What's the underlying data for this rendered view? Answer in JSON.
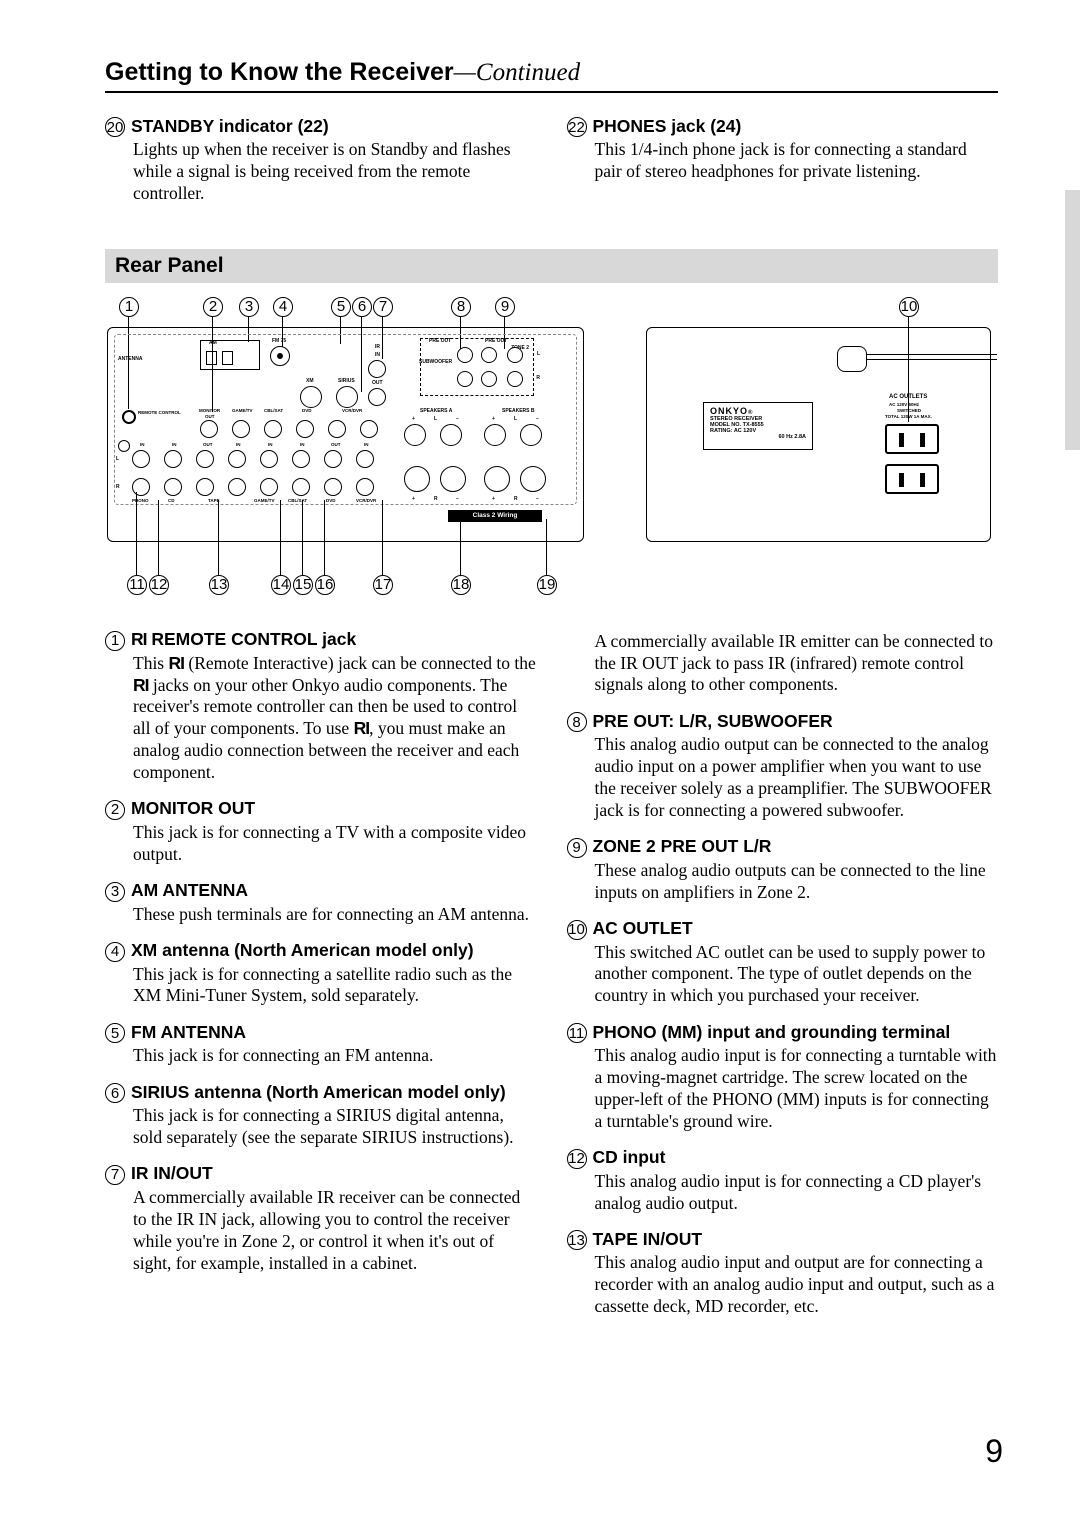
{
  "title_main": "Getting to Know the Receiver",
  "title_cont": "—Continued",
  "top_items": {
    "left": {
      "num": "20",
      "title": "STANDBY indicator (22)",
      "body": "Lights up when the receiver is on Standby and flashes while a signal is being received from the remote controller."
    },
    "right": {
      "num": "22",
      "title": "PHONES jack (24)",
      "body": "This 1/4-inch phone jack is for connecting a standard pair of stereo headphones for private listening."
    }
  },
  "rear_panel_header": "Rear Panel",
  "callouts_top": [
    "1",
    "2",
    "3",
    "4",
    "5",
    "6",
    "7",
    "8",
    "9",
    "10"
  ],
  "callouts_bottom": [
    "11",
    "12",
    "13",
    "14",
    "15",
    "16",
    "17",
    "18",
    "19"
  ],
  "panel_labels": {
    "brand": "ONKYO",
    "model1": "STEREO RECEIVER",
    "model2": "MODEL NO. TX-8555",
    "model3": "RATING:  AC 120V",
    "model4": "60 Hz   2.8A",
    "ac_outlets": "AC OUTLETS",
    "ac_line1": "AC 120V     60Hz",
    "ac_line2": "SWITCHED",
    "ac_line3": "TOTAL 120W  1A  MAX.",
    "antenna": "ANTENNA",
    "am": "AM",
    "fm75": "FM 75",
    "xm": "XM",
    "sirius": "SIRIUS",
    "ir": "IR",
    "in": "IN",
    "out": "OUT",
    "preout": "PRE OUT",
    "preout2": "PRE OUT",
    "zone2": "ZONE 2",
    "subwoofer": "SUBWOOFER",
    "speakers_a": "SPEAKERS A",
    "speakers_b": "SPEAKERS B",
    "remote_control": "REMOTE CONTROL",
    "monitor": "MONITOR",
    "game": "GAME/TV",
    "cbl": "CBL/SAT",
    "dvd": "DVD",
    "vcr": "VCR/DVR",
    "phono": "PHONO",
    "cd": "CD",
    "tape": "TAPE",
    "class2": "Class 2 Wiring",
    "l": "L",
    "r": "R",
    "plus": "+",
    "minus": "−"
  },
  "items_left": [
    {
      "num": "1",
      "title": " REMOTE CONTROL jack",
      "ri": true,
      "body": "This  (Remote Interactive) jack can be connected to the  jacks on your other Onkyo audio components. The receiver's remote controller can then be used to control all of your components. To use , you must make an analog audio connection between the receiver and each component.",
      "ri_body": true
    },
    {
      "num": "2",
      "title": "MONITOR OUT",
      "body": "This jack is for connecting a TV with a composite video output."
    },
    {
      "num": "3",
      "title": "AM ANTENNA",
      "body": "These push terminals are for connecting an AM antenna."
    },
    {
      "num": "4",
      "title": "XM antenna (North American model only)",
      "body": "This jack is for connecting a satellite radio such as the XM Mini-Tuner System, sold separately."
    },
    {
      "num": "5",
      "title": "FM ANTENNA",
      "body": "This jack is for connecting an FM antenna."
    },
    {
      "num": "6",
      "title": "SIRIUS antenna (North American model only)",
      "body": "This jack is for connecting a SIRIUS digital antenna, sold separately (see the separate SIRIUS instructions)."
    },
    {
      "num": "7",
      "title": "IR IN/OUT",
      "body": "A commercially available IR receiver can be connected to the IR IN jack, allowing you to control the receiver while you're in Zone 2, or control it when it's out of sight, for example, installed in a cabinet."
    }
  ],
  "items_right": [
    {
      "num": "",
      "title": "",
      "body": "A commercially available IR emitter can be connected to the IR OUT jack to pass IR (infrared) remote control signals along to other components."
    },
    {
      "num": "8",
      "title": "PRE OUT: L/R, SUBWOOFER",
      "body": "This analog audio output can be connected to the analog audio input on a power amplifier when you want to use the receiver solely as a preamplifier. The SUBWOOFER jack is for connecting a powered subwoofer."
    },
    {
      "num": "9",
      "title": "ZONE 2 PRE OUT L/R",
      "body": "These analog audio outputs can be connected to the line inputs on amplifiers in Zone 2."
    },
    {
      "num": "10",
      "title": "AC OUTLET",
      "body": "This switched AC outlet can be used to supply power to another component. The type of outlet depends on the country in which you purchased your receiver."
    },
    {
      "num": "11",
      "title": "PHONO (MM) input and grounding terminal",
      "body": "This analog audio input is for connecting a turntable with a moving-magnet cartridge. The screw located on the upper-left of the PHONO (MM) inputs is for connecting a turntable's ground wire."
    },
    {
      "num": "12",
      "title": "CD input",
      "body": "This analog audio input is for connecting a CD player's analog audio output."
    },
    {
      "num": "13",
      "title": "TAPE IN/OUT",
      "body": "This analog audio input and output are for connecting a recorder with an analog audio input and output, such as a cassette deck, MD recorder, etc."
    }
  ],
  "page_number": "9",
  "diagram": {
    "top_callouts_x": [
      14,
      98,
      134,
      168,
      226,
      247,
      268,
      346,
      390,
      794
    ],
    "bottom_callouts_x": [
      22,
      44,
      104,
      166,
      188,
      210,
      268,
      346,
      432
    ],
    "colors": {
      "bg": "#ffffff",
      "line": "#000000",
      "gray_box": "#e5e5e5"
    }
  }
}
